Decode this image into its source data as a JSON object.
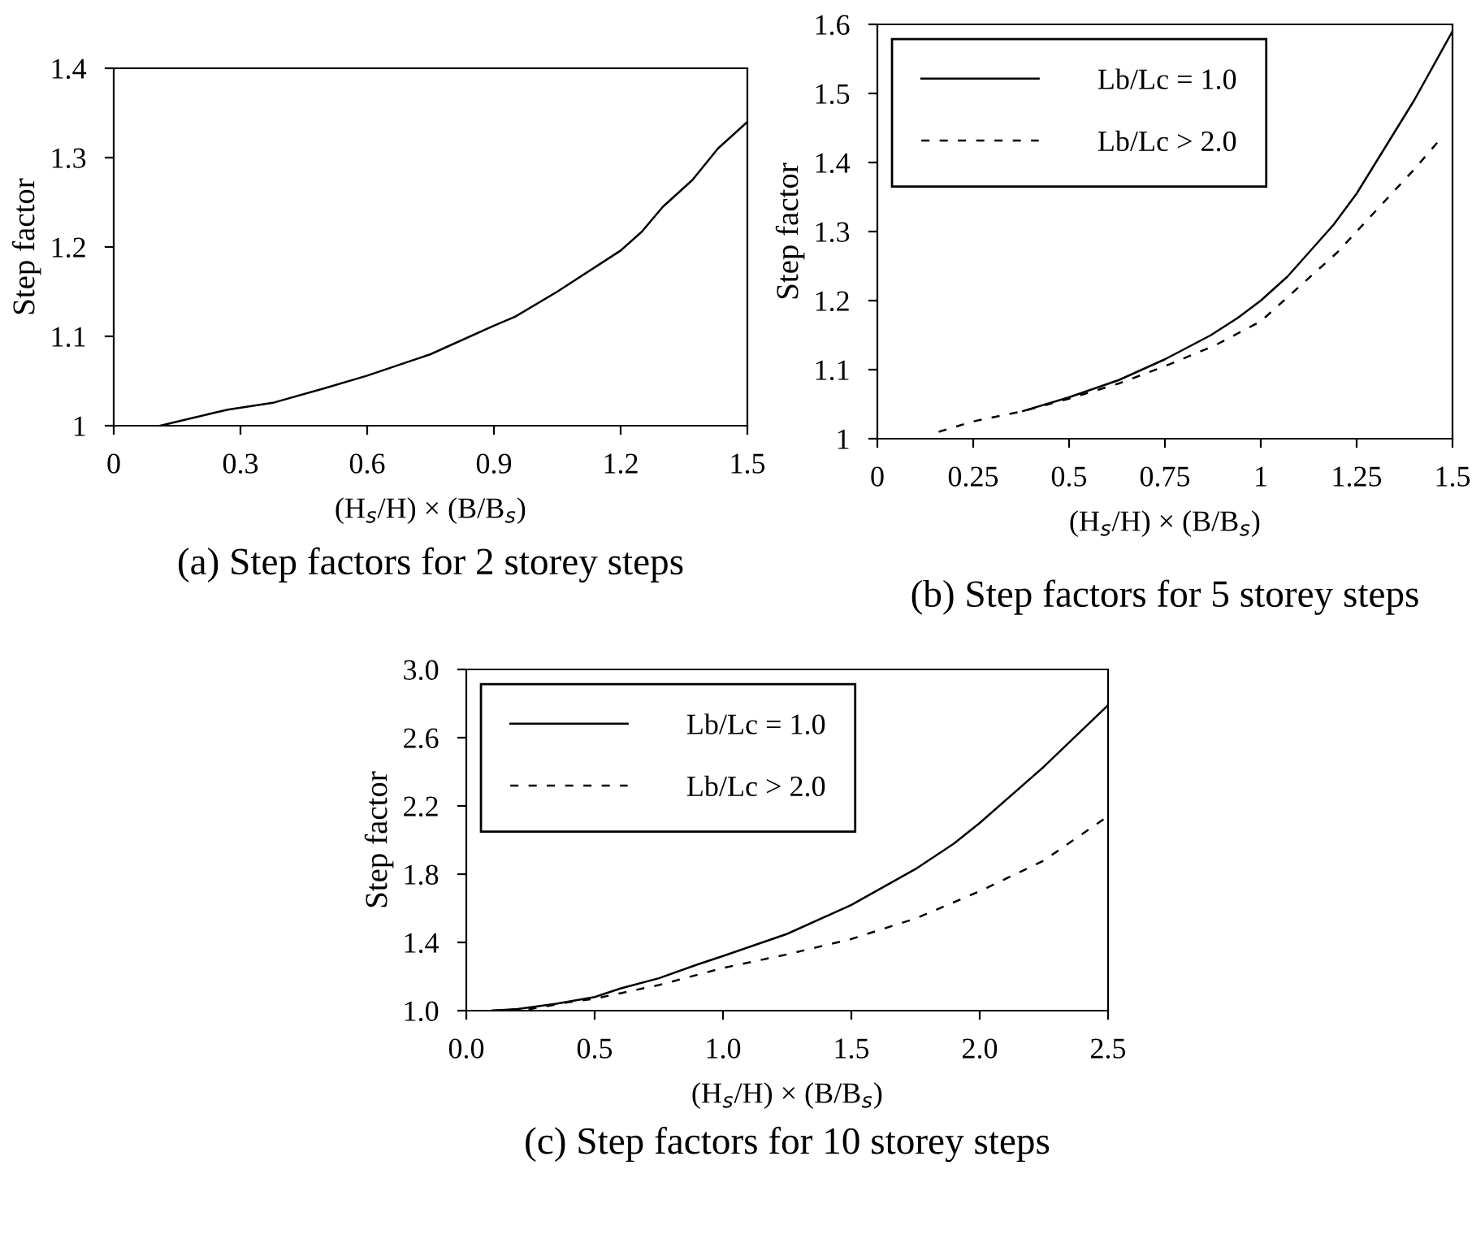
{
  "chart_data": [
    {
      "type": "line",
      "title": "(a) Step factors for 2 storey steps",
      "xlabel": "(H$_{s}$/H) × (B/B$_{s}$)",
      "ylabel": "Step factor",
      "xlim": [
        0,
        1.5
      ],
      "ylim": [
        1,
        1.4
      ],
      "xticks": [
        0,
        0.3,
        0.6,
        0.9,
        1.2,
        1.5
      ],
      "yticks": [
        1,
        1.1,
        1.2,
        1.3,
        1.4
      ],
      "grid": false,
      "legend": false,
      "series": [
        {
          "color": "#000000",
          "line_style": "solid",
          "x": [
            0.11,
            0.18,
            0.27,
            0.38,
            0.5,
            0.6,
            0.75,
            0.9,
            0.95,
            1.05,
            1.2,
            1.25,
            1.3,
            1.37,
            1.43,
            1.5
          ],
          "values": [
            1.0,
            1.008,
            1.018,
            1.026,
            1.042,
            1.056,
            1.08,
            1.112,
            1.122,
            1.15,
            1.196,
            1.217,
            1.245,
            1.275,
            1.31,
            1.34
          ]
        }
      ]
    },
    {
      "type": "line",
      "title": "(b) Step factors for 5 storey steps",
      "xlabel": "(H$_{s}$/H) × (B/B$_{s}$)",
      "ylabel": "Step factor",
      "xlim": [
        0,
        1.5
      ],
      "ylim": [
        1,
        1.6
      ],
      "xticks": [
        0,
        0.25,
        0.5,
        0.75,
        1,
        1.25,
        1.5
      ],
      "yticks": [
        1,
        1.1,
        1.2,
        1.3,
        1.4,
        1.5,
        1.6
      ],
      "grid": false,
      "legend": "top left",
      "series": [
        {
          "name": "Lb/Lc = 1.0",
          "color": "#000000",
          "line_style": "solid",
          "x": [
            0.38,
            0.5,
            0.63,
            0.75,
            0.87,
            0.94,
            1.0,
            1.07,
            1.19,
            1.25,
            1.3,
            1.4,
            1.5
          ],
          "values": [
            1.04,
            1.06,
            1.085,
            1.115,
            1.15,
            1.175,
            1.2,
            1.235,
            1.31,
            1.355,
            1.4,
            1.49,
            1.59
          ]
        },
        {
          "name": "Lb/Lc > 2.0",
          "color": "#000000",
          "line_style": "dashed",
          "x": [
            0.16,
            0.25,
            0.38,
            0.5,
            0.63,
            0.75,
            0.88,
            1.0,
            1.1,
            1.2,
            1.3,
            1.4,
            1.47
          ],
          "values": [
            1.01,
            1.025,
            1.04,
            1.058,
            1.08,
            1.105,
            1.135,
            1.17,
            1.22,
            1.27,
            1.33,
            1.39,
            1.435
          ]
        }
      ]
    },
    {
      "type": "line",
      "title": "(c) Step factors for 10 storey steps",
      "xlabel": "(H$_{s}$/H) × (B/B$_{s}$)",
      "ylabel": "Step factor",
      "xlim": [
        0,
        2.5
      ],
      "ylim": [
        1,
        3
      ],
      "xticks": [
        {
          "value": 0,
          "label": "0.0"
        },
        0.5,
        {
          "value": 1,
          "label": "1.0"
        },
        1.5,
        {
          "value": 2,
          "label": "2.0"
        },
        2.5
      ],
      "yticks": [
        {
          "value": 1,
          "label": "1.0"
        },
        1.4,
        1.8,
        2.2,
        2.6,
        {
          "value": 3,
          "label": "3.0"
        }
      ],
      "grid": false,
      "legend": "top left",
      "series": [
        {
          "name": "Lb/Lc = 1.0",
          "color": "#000000",
          "line_style": "solid",
          "x": [
            0.1,
            0.2,
            0.35,
            0.5,
            0.6,
            0.75,
            0.9,
            1.0,
            1.25,
            1.5,
            1.75,
            1.9,
            2.0,
            2.25,
            2.5
          ],
          "values": [
            1.0,
            1.01,
            1.04,
            1.08,
            1.13,
            1.19,
            1.27,
            1.32,
            1.45,
            1.62,
            1.83,
            1.98,
            2.1,
            2.43,
            2.79
          ]
        },
        {
          "name": "Lb/Lc > 2.0",
          "color": "#000000",
          "line_style": "dashed",
          "x": [
            0.1,
            0.25,
            0.4,
            0.5,
            0.75,
            1.0,
            1.25,
            1.5,
            1.75,
            2.0,
            2.25,
            2.5
          ],
          "values": [
            1.0,
            1.01,
            1.05,
            1.07,
            1.15,
            1.25,
            1.33,
            1.42,
            1.54,
            1.7,
            1.88,
            2.14
          ]
        }
      ]
    }
  ]
}
